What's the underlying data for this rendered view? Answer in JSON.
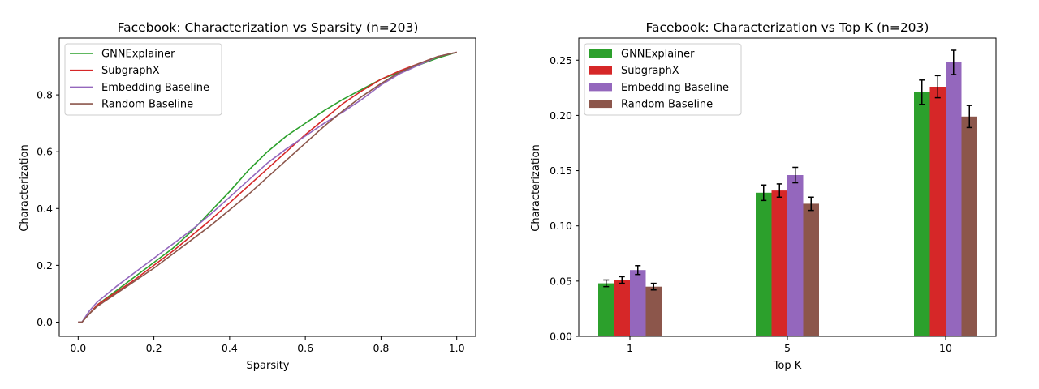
{
  "chart_data": [
    {
      "type": "line",
      "title": "Facebook: Characterization vs Sparsity (n=203)",
      "xlabel": "Sparsity",
      "ylabel": "Characterization",
      "xlim": [
        -0.05,
        1.05
      ],
      "ylim": [
        -0.05,
        1.0
      ],
      "xticks": [
        0.0,
        0.2,
        0.4,
        0.6,
        0.8,
        1.0
      ],
      "xtick_labels": [
        "0.0",
        "0.2",
        "0.4",
        "0.6",
        "0.8",
        "1.0"
      ],
      "yticks": [
        0.0,
        0.2,
        0.4,
        0.6,
        0.8
      ],
      "ytick_labels": [
        "0.0",
        "0.2",
        "0.4",
        "0.6",
        "0.8"
      ],
      "grid": false,
      "legend_position": "top-left",
      "series": [
        {
          "name": "GNNExplainer",
          "color": "#2ca02c",
          "x": [
            0.0,
            0.01,
            0.03,
            0.05,
            0.1,
            0.15,
            0.2,
            0.25,
            0.3,
            0.35,
            0.4,
            0.45,
            0.5,
            0.55,
            0.6,
            0.65,
            0.7,
            0.75,
            0.8,
            0.85,
            0.9,
            0.95,
            1.0
          ],
          "y": [
            0.0,
            0.0,
            0.03,
            0.06,
            0.11,
            0.16,
            0.21,
            0.26,
            0.32,
            0.39,
            0.46,
            0.535,
            0.6,
            0.655,
            0.7,
            0.745,
            0.785,
            0.82,
            0.855,
            0.88,
            0.905,
            0.93,
            0.95
          ]
        },
        {
          "name": "SubgraphX",
          "color": "#d62728",
          "x": [
            0.0,
            0.01,
            0.03,
            0.05,
            0.1,
            0.15,
            0.2,
            0.25,
            0.3,
            0.35,
            0.4,
            0.45,
            0.5,
            0.55,
            0.6,
            0.65,
            0.7,
            0.75,
            0.8,
            0.85,
            0.9,
            0.95,
            1.0
          ],
          "y": [
            0.0,
            0.0,
            0.03,
            0.06,
            0.105,
            0.15,
            0.2,
            0.25,
            0.305,
            0.36,
            0.42,
            0.48,
            0.54,
            0.6,
            0.66,
            0.715,
            0.77,
            0.815,
            0.855,
            0.885,
            0.91,
            0.935,
            0.95
          ]
        },
        {
          "name": "Embedding Baseline",
          "color": "#9467bd",
          "x": [
            0.0,
            0.01,
            0.03,
            0.05,
            0.1,
            0.15,
            0.2,
            0.25,
            0.3,
            0.35,
            0.4,
            0.45,
            0.5,
            0.55,
            0.6,
            0.65,
            0.7,
            0.75,
            0.8,
            0.85,
            0.9,
            0.95,
            1.0
          ],
          "y": [
            0.0,
            0.0,
            0.04,
            0.07,
            0.125,
            0.175,
            0.225,
            0.275,
            0.325,
            0.38,
            0.44,
            0.5,
            0.56,
            0.61,
            0.655,
            0.7,
            0.74,
            0.785,
            0.835,
            0.875,
            0.905,
            0.935,
            0.95
          ]
        },
        {
          "name": "Random Baseline",
          "color": "#8c564b",
          "x": [
            0.0,
            0.01,
            0.03,
            0.05,
            0.1,
            0.15,
            0.2,
            0.25,
            0.3,
            0.35,
            0.4,
            0.45,
            0.5,
            0.55,
            0.6,
            0.65,
            0.7,
            0.75,
            0.8,
            0.85,
            0.9,
            0.95,
            1.0
          ],
          "y": [
            0.0,
            0.0,
            0.03,
            0.055,
            0.1,
            0.145,
            0.19,
            0.24,
            0.29,
            0.34,
            0.395,
            0.45,
            0.51,
            0.57,
            0.63,
            0.69,
            0.745,
            0.795,
            0.84,
            0.88,
            0.91,
            0.935,
            0.95
          ]
        }
      ]
    },
    {
      "type": "bar",
      "title": "Facebook: Characterization vs Top K (n=203)",
      "xlabel": "Top K",
      "ylabel": "Characterization",
      "categories": [
        "1",
        "5",
        "10"
      ],
      "ylim": [
        0.0,
        0.27
      ],
      "yticks": [
        0.0,
        0.05,
        0.1,
        0.15,
        0.2,
        0.25
      ],
      "ytick_labels": [
        "0.00",
        "0.05",
        "0.10",
        "0.15",
        "0.20",
        "0.25"
      ],
      "grid": false,
      "legend_position": "top-left",
      "series": [
        {
          "name": "GNNExplainer",
          "color": "#2ca02c",
          "values": [
            0.048,
            0.13,
            0.221
          ],
          "errors": [
            0.003,
            0.007,
            0.011
          ]
        },
        {
          "name": "SubgraphX",
          "color": "#d62728",
          "values": [
            0.051,
            0.132,
            0.226
          ],
          "errors": [
            0.003,
            0.006,
            0.01
          ]
        },
        {
          "name": "Embedding Baseline",
          "color": "#9467bd",
          "values": [
            0.06,
            0.146,
            0.248
          ],
          "errors": [
            0.004,
            0.007,
            0.011
          ]
        },
        {
          "name": "Random Baseline",
          "color": "#8c564b",
          "values": [
            0.045,
            0.12,
            0.199
          ],
          "errors": [
            0.003,
            0.006,
            0.01
          ]
        }
      ]
    }
  ]
}
